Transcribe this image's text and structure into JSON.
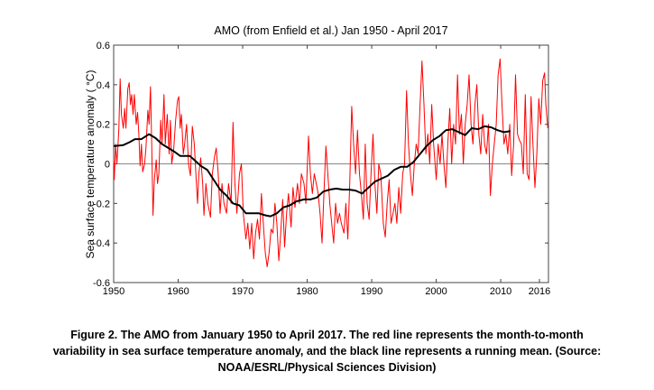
{
  "chart_data": {
    "type": "line",
    "title": "AMO (from Enfield et al.) Jan 1950 - April 2017",
    "xlabel": "",
    "ylabel": "Sea surface temperature anomaly ( °C)",
    "xlim": [
      1950,
      2017.4
    ],
    "ylim": [
      -0.6,
      0.6
    ],
    "x_ticks": [
      "1950",
      "1960",
      "1970",
      "1980",
      "1990",
      "2000",
      "2010",
      "2016"
    ],
    "x_tick_values": [
      1950,
      1960,
      1970,
      1980,
      1990,
      2000,
      2010,
      2016
    ],
    "y_ticks": [
      "-0.6",
      "-0.4",
      "-0.2",
      "0",
      "0.2",
      "0.4",
      "0.6"
    ],
    "y_tick_values": [
      -0.6,
      -0.4,
      -0.2,
      0,
      0.2,
      0.4,
      0.6
    ],
    "grid": false,
    "zero_line": true,
    "series": [
      {
        "color": "#ff0000",
        "x": [
          1950.0,
          1950.1,
          1950.3,
          1950.5,
          1950.8,
          1951.0,
          1951.2,
          1951.5,
          1951.7,
          1951.9,
          1952.2,
          1952.4,
          1952.6,
          1952.8,
          1953.0,
          1953.2,
          1953.5,
          1953.7,
          1953.9,
          1954.1,
          1954.3,
          1954.5,
          1954.8,
          1955.0,
          1955.3,
          1955.5,
          1955.7,
          1955.9,
          1956.1,
          1956.3,
          1956.6,
          1956.8,
          1957.0,
          1957.3,
          1957.5,
          1957.8,
          1958.0,
          1958.3,
          1958.6,
          1958.8,
          1959.0,
          1959.3,
          1959.6,
          1959.9,
          1960.1,
          1960.3,
          1960.5,
          1960.8,
          1961.0,
          1961.3,
          1961.6,
          1961.9,
          1962.2,
          1962.5,
          1962.8,
          1963.0,
          1963.2,
          1963.5,
          1963.8,
          1964.0,
          1964.3,
          1964.6,
          1965.0,
          1965.3,
          1965.6,
          1965.9,
          1966.2,
          1966.5,
          1966.8,
          1967.1,
          1967.5,
          1967.8,
          1968.2,
          1968.5,
          1968.8,
          1969.1,
          1969.5,
          1969.8,
          1970.1,
          1970.5,
          1970.8,
          1971.1,
          1971.4,
          1971.7,
          1972.0,
          1972.3,
          1972.6,
          1972.9,
          1973.2,
          1973.5,
          1973.8,
          1974.1,
          1974.4,
          1974.7,
          1975.0,
          1975.3,
          1975.6,
          1975.9,
          1976.2,
          1976.5,
          1976.8,
          1977.1,
          1977.5,
          1977.8,
          1978.1,
          1978.5,
          1978.8,
          1979.1,
          1979.5,
          1979.8,
          1980.2,
          1980.5,
          1980.8,
          1981.1,
          1981.4,
          1981.7,
          1982.0,
          1982.3,
          1982.6,
          1982.9,
          1983.2,
          1983.5,
          1983.8,
          1984.1,
          1984.4,
          1984.7,
          1985.0,
          1985.3,
          1985.7,
          1986.0,
          1986.3,
          1986.6,
          1986.9,
          1987.2,
          1987.5,
          1987.8,
          1988.1,
          1988.4,
          1988.7,
          1989.0,
          1989.3,
          1989.6,
          1989.9,
          1990.2,
          1990.5,
          1990.8,
          1991.1,
          1991.4,
          1991.8,
          1992.1,
          1992.4,
          1992.7,
          1993.0,
          1993.3,
          1993.6,
          1993.9,
          1994.2,
          1994.5,
          1994.8,
          1995.1,
          1995.4,
          1995.7,
          1996.0,
          1996.3,
          1996.6,
          1996.9,
          1997.2,
          1997.5,
          1997.8,
          1998.1,
          1998.4,
          1998.7,
          1999.0,
          1999.3,
          1999.6,
          2000.0,
          2000.3,
          2000.6,
          2000.9,
          2001.2,
          2001.5,
          2001.8,
          2002.1,
          2002.4,
          2002.7,
          2003.0,
          2003.3,
          2003.6,
          2003.9,
          2004.2,
          2004.5,
          2004.8,
          2005.1,
          2005.4,
          2005.7,
          2006.0,
          2006.3,
          2006.6,
          2006.9,
          2007.2,
          2007.5,
          2007.8,
          2008.1,
          2008.4,
          2008.7,
          2009.0,
          2009.3,
          2009.6,
          2009.9,
          2010.2,
          2010.5,
          2010.8,
          2011.1,
          2011.4,
          2011.7,
          2012.0,
          2012.3,
          2012.6,
          2012.9,
          2013.2,
          2013.5,
          2013.8,
          2014.1,
          2014.4,
          2014.7,
          2015.0,
          2015.3,
          2015.6,
          2015.9,
          2016.2,
          2016.5,
          2016.8,
          2017.0,
          2017.3
        ],
        "y": [
          0.02,
          -0.08,
          0.1,
          0.0,
          0.17,
          0.43,
          0.25,
          0.18,
          0.28,
          0.18,
          0.38,
          0.41,
          0.3,
          0.35,
          0.25,
          0.35,
          0.2,
          0.26,
          0.15,
          -0.01,
          0.1,
          -0.04,
          0.0,
          0.08,
          0.27,
          0.2,
          0.39,
          0.1,
          -0.26,
          -0.08,
          0.02,
          -0.1,
          -0.05,
          0.22,
          0.1,
          0.35,
          0.1,
          0.25,
          0.05,
          0.22,
          0.0,
          0.07,
          0.22,
          0.32,
          0.34,
          0.18,
          0.25,
          0.05,
          0.1,
          0.2,
          0.0,
          -0.06,
          0.19,
          0.1,
          -0.08,
          -0.2,
          -0.05,
          0.03,
          -0.1,
          -0.26,
          -0.1,
          -0.2,
          -0.27,
          -0.05,
          0.03,
          0.08,
          -0.05,
          -0.25,
          -0.1,
          -0.2,
          -0.25,
          -0.1,
          -0.2,
          0.21,
          -0.1,
          -0.25,
          -0.05,
          0.0,
          -0.25,
          -0.38,
          -0.3,
          -0.43,
          -0.3,
          -0.48,
          -0.35,
          -0.28,
          -0.38,
          -0.15,
          -0.3,
          -0.45,
          -0.52,
          -0.45,
          -0.33,
          -0.35,
          -0.2,
          -0.3,
          -0.49,
          -0.35,
          -0.18,
          -0.42,
          -0.25,
          -0.15,
          -0.32,
          -0.12,
          -0.22,
          -0.1,
          -0.2,
          -0.05,
          -0.1,
          -0.2,
          0.14,
          -0.05,
          -0.15,
          -0.05,
          -0.1,
          -0.15,
          -0.25,
          -0.4,
          -0.15,
          0.09,
          -0.05,
          -0.2,
          -0.3,
          -0.4,
          -0.2,
          -0.3,
          -0.25,
          -0.3,
          -0.35,
          -0.2,
          -0.38,
          -0.1,
          0.29,
          0.1,
          -0.05,
          0.17,
          -0.05,
          -0.15,
          -0.28,
          0.1,
          -0.2,
          -0.28,
          -0.05,
          0.15,
          -0.1,
          -0.25,
          0.0,
          -0.05,
          -0.3,
          -0.37,
          -0.2,
          -0.08,
          -0.3,
          -0.25,
          -0.2,
          -0.3,
          -0.12,
          -0.25,
          -0.05,
          0.0,
          0.37,
          0.1,
          -0.05,
          -0.16,
          0.0,
          0.1,
          0.05,
          0.3,
          0.52,
          0.3,
          0.05,
          0.15,
          0.0,
          0.3,
          0.1,
          -0.08,
          0.1,
          0.0,
          0.15,
          0.0,
          -0.12,
          0.1,
          0.28,
          0.0,
          0.2,
          0.1,
          0.45,
          0.15,
          0.25,
          0.0,
          0.2,
          0.3,
          0.45,
          0.2,
          0.1,
          0.3,
          0.4,
          0.15,
          0.05,
          0.25,
          0.1,
          0.05,
          0.2,
          -0.16,
          0.0,
          0.1,
          0.2,
          0.45,
          0.53,
          0.3,
          0.1,
          0.15,
          0.05,
          0.2,
          -0.06,
          0.1,
          0.45,
          0.15,
          0.12,
          0.1,
          -0.05,
          0.35,
          -0.05,
          -0.08,
          0.34,
          0.1,
          -0.12,
          0.05,
          0.33,
          0.2,
          0.42,
          0.46,
          0.3,
          0.18
        ]
      },
      {
        "color": "#000000",
        "x": [
          1950,
          1951.5,
          1952.5,
          1953.3,
          1954.3,
          1955,
          1955.5,
          1956.5,
          1957.5,
          1958.5,
          1959.5,
          1960.3,
          1961,
          1961.8,
          1962.5,
          1963.5,
          1964.5,
          1965.5,
          1966.5,
          1967.5,
          1968.5,
          1969.5,
          1970.5,
          1971.5,
          1972.5,
          1973.5,
          1974.3,
          1975.3,
          1976.3,
          1977.3,
          1978.3,
          1979.5,
          1980.5,
          1981.5,
          1982.5,
          1983.5,
          1984.5,
          1985.5,
          1986.5,
          1987.5,
          1988.5,
          1989.5,
          1990.5,
          1991.5,
          1992.5,
          1993.5,
          1994.5,
          1995.5,
          1996.5,
          1997.5,
          1998.5,
          1999.5,
          2000.5,
          2001.5,
          2002.5,
          2003.5,
          2004.5,
          2005.5,
          2006.5,
          2007.5,
          2008.5,
          2009.5,
          2010.5,
          2011.5
        ],
        "y": [
          0.09,
          0.095,
          0.11,
          0.125,
          0.125,
          0.14,
          0.15,
          0.13,
          0.1,
          0.08,
          0.06,
          0.04,
          0.04,
          0.04,
          0.02,
          -0.01,
          -0.03,
          -0.08,
          -0.13,
          -0.16,
          -0.2,
          -0.21,
          -0.25,
          -0.25,
          -0.25,
          -0.26,
          -0.265,
          -0.25,
          -0.22,
          -0.21,
          -0.19,
          -0.18,
          -0.18,
          -0.17,
          -0.14,
          -0.13,
          -0.125,
          -0.13,
          -0.13,
          -0.135,
          -0.15,
          -0.12,
          -0.09,
          -0.075,
          -0.06,
          -0.03,
          -0.015,
          -0.015,
          0.01,
          0.05,
          0.09,
          0.12,
          0.14,
          0.17,
          0.175,
          0.16,
          0.145,
          0.18,
          0.175,
          0.19,
          0.185,
          0.17,
          0.16,
          0.165
        ]
      }
    ]
  },
  "caption": {
    "line1": "Figure 2. The AMO from January 1950 to April 2017. The red line represents the month-to-month",
    "line2": "variability in sea surface temperature anomaly, and the black line represents a running mean. (Source:",
    "line3": "NOAA/ESRL/Physical Sciences Division)"
  }
}
